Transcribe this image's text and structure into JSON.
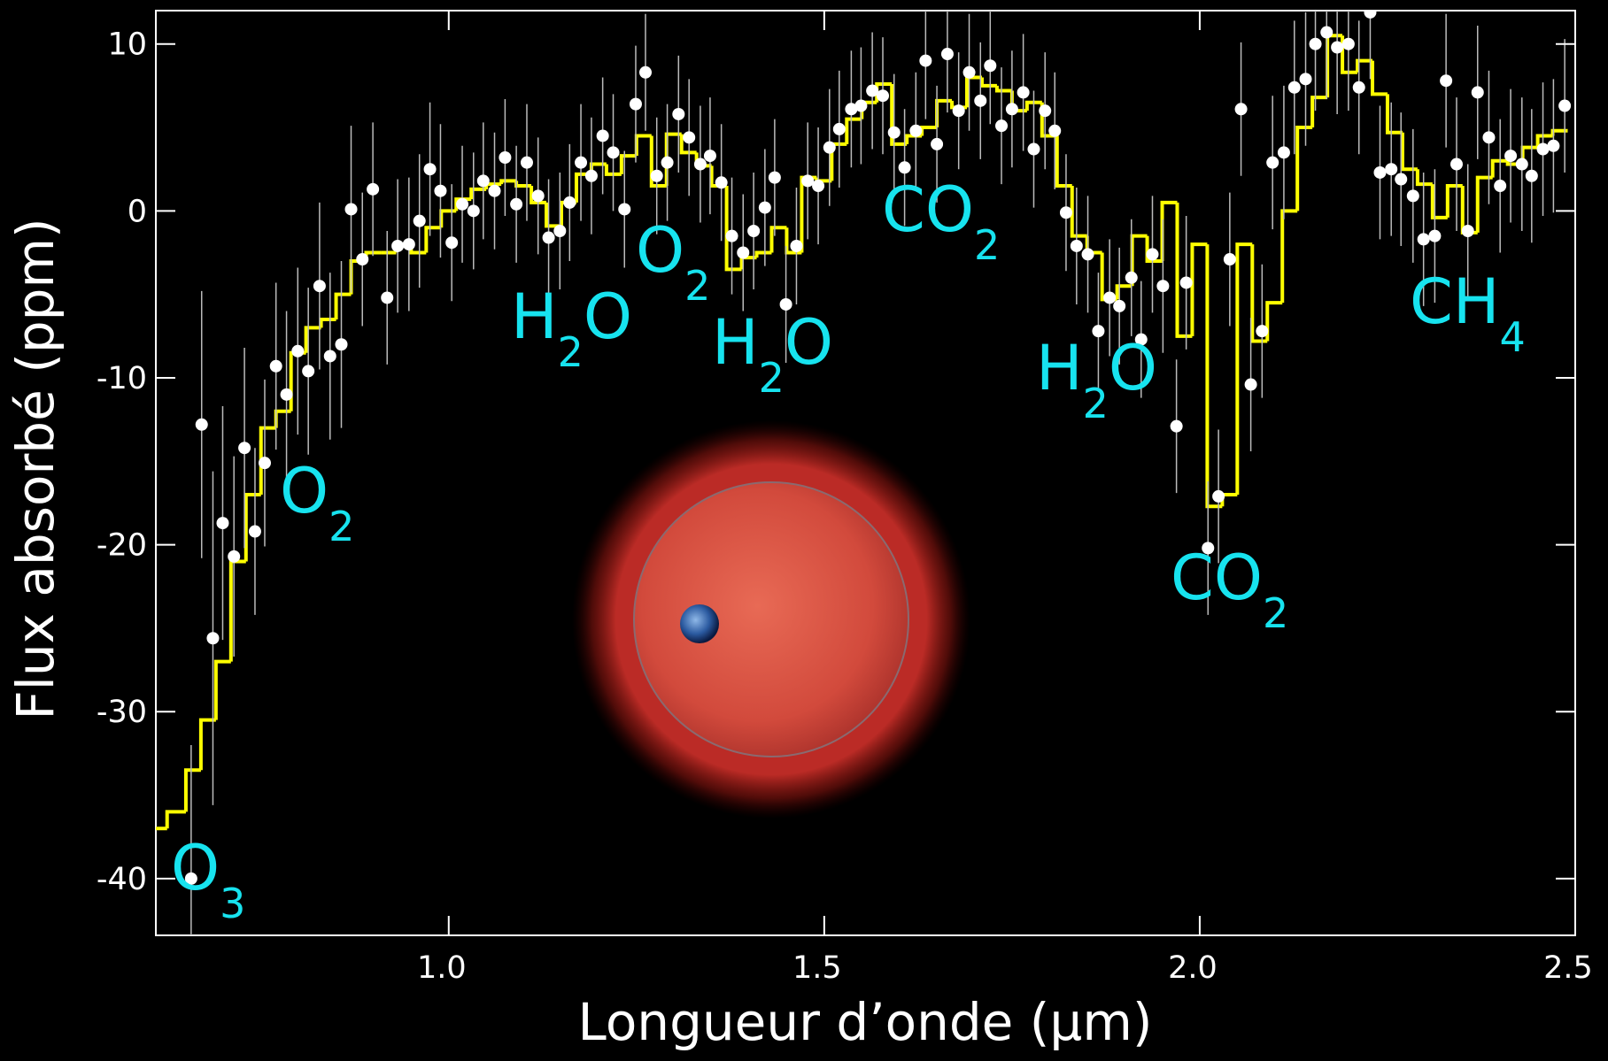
{
  "chart_data": {
    "type": "scatter",
    "x_label": "Longueur d’onde (μm)",
    "y_label": "Flux absorbé (ppm)",
    "xlim": [
      0.61,
      2.5
    ],
    "ylim": [
      -43.4,
      12
    ],
    "xticks": [
      {
        "value": 1.0,
        "label": "1.0"
      },
      {
        "value": 1.5,
        "label": "1.5"
      },
      {
        "value": 2.0,
        "label": "2.0"
      },
      {
        "value": 2.5,
        "label": "2.5"
      }
    ],
    "yticks": [
      10,
      0,
      -10,
      -20,
      -30,
      -40
    ],
    "series": [
      {
        "type": "step",
        "color": "#ffff00",
        "x": [
          0.61,
          0.64,
          0.66,
          0.68,
          0.7,
          0.72,
          0.74,
          0.76,
          0.78,
          0.8,
          0.82,
          0.84,
          0.86,
          0.88,
          0.9,
          0.92,
          0.94,
          0.96,
          0.98,
          1.0,
          1.02,
          1.04,
          1.06,
          1.08,
          1.1,
          1.12,
          1.14,
          1.16,
          1.18,
          1.2,
          1.22,
          1.24,
          1.26,
          1.28,
          1.3,
          1.32,
          1.34,
          1.36,
          1.38,
          1.4,
          1.42,
          1.44,
          1.46,
          1.48,
          1.5,
          1.52,
          1.54,
          1.56,
          1.58,
          1.6,
          1.62,
          1.64,
          1.66,
          1.68,
          1.7,
          1.72,
          1.74,
          1.76,
          1.78,
          1.8,
          1.82,
          1.84,
          1.86,
          1.88,
          1.9,
          1.92,
          1.94,
          1.96,
          1.98,
          2.0,
          2.02,
          2.04,
          2.06,
          2.08,
          2.1,
          2.12,
          2.14,
          2.16,
          2.18,
          2.2,
          2.22,
          2.24,
          2.26,
          2.28,
          2.3,
          2.32,
          2.34,
          2.36,
          2.38,
          2.4,
          2.42,
          2.44,
          2.46,
          2.48
        ],
        "values": [
          -37,
          -36,
          -33.5,
          -30.5,
          -27,
          -21,
          -17,
          -13,
          -12,
          -8.5,
          -7,
          -6.5,
          -5,
          -3,
          -2.5,
          -2.5,
          -2,
          -2.5,
          -1,
          0,
          0.7,
          1.3,
          1.6,
          1.8,
          1.5,
          0.5,
          -0.9,
          0.5,
          2.2,
          2.8,
          2.2,
          3.3,
          4.5,
          1.5,
          4.6,
          3.5,
          2.7,
          1.5,
          -3.5,
          -2.8,
          -2.5,
          -1,
          -2.5,
          2,
          1.8,
          4,
          5.5,
          6.5,
          7.6,
          4,
          4.5,
          5,
          6.6,
          6.2,
          8,
          7.5,
          7.2,
          6,
          6.5,
          4.5,
          1.5,
          -1.5,
          -2.5,
          -5.3,
          -4.5,
          -1.5,
          -3,
          0.5,
          -7.5,
          -2,
          -17.7,
          -17,
          -2,
          -7.8,
          -5.5,
          0,
          5,
          6.8,
          10.5,
          8.3,
          9,
          7,
          4.7,
          2.5,
          1.6,
          -0.4,
          1.5,
          -1.3,
          2,
          3,
          2.8,
          3.8,
          4.5,
          4.8
        ]
      },
      {
        "type": "scatter",
        "color": "#ffffff",
        "x": [
          0.657,
          0.671,
          0.686,
          0.699,
          0.714,
          0.728,
          0.742,
          0.755,
          0.77,
          0.784,
          0.799,
          0.813,
          0.828,
          0.842,
          0.857,
          0.87,
          0.885,
          0.899,
          0.918,
          0.932,
          0.947,
          0.961,
          0.975,
          0.989,
          1.004,
          1.018,
          1.033,
          1.046,
          1.061,
          1.075,
          1.09,
          1.104,
          1.119,
          1.133,
          1.148,
          1.161,
          1.176,
          1.19,
          1.205,
          1.219,
          1.234,
          1.249,
          1.262,
          1.277,
          1.291,
          1.306,
          1.32,
          1.335,
          1.348,
          1.363,
          1.377,
          1.392,
          1.406,
          1.421,
          1.434,
          1.449,
          1.463,
          1.478,
          1.492,
          1.507,
          1.52,
          1.536,
          1.549,
          1.564,
          1.578,
          1.593,
          1.607,
          1.622,
          1.635,
          1.65,
          1.664,
          1.679,
          1.693,
          1.708,
          1.721,
          1.736,
          1.75,
          1.765,
          1.779,
          1.794,
          1.807,
          1.822,
          1.836,
          1.851,
          1.865,
          1.88,
          1.893,
          1.909,
          1.922,
          1.937,
          1.951,
          1.969,
          1.982,
          2.011,
          2.025,
          2.04,
          2.055,
          2.068,
          2.083,
          2.097,
          2.112,
          2.126,
          2.141,
          2.154,
          2.169,
          2.183,
          2.198,
          2.212,
          2.227,
          2.24,
          2.255,
          2.268,
          2.284,
          2.298,
          2.313,
          2.328,
          2.342,
          2.357,
          2.37,
          2.385,
          2.4,
          2.414,
          2.429,
          2.442,
          2.457,
          2.471,
          2.486
        ],
        "values": [
          -40,
          -12.8,
          -25.6,
          -18.7,
          -20.7,
          -14.2,
          -19.2,
          -15.1,
          -9.3,
          -11.0,
          -8.4,
          -9.6,
          -4.5,
          -8.7,
          -8.0,
          0.1,
          -2.9,
          1.3,
          -5.2,
          -2.1,
          -2.0,
          -0.6,
          2.5,
          1.2,
          -1.9,
          0.4,
          0.0,
          1.8,
          1.2,
          3.2,
          0.4,
          2.9,
          0.9,
          -1.6,
          -1.2,
          0.5,
          2.9,
          2.1,
          4.5,
          3.5,
          0.1,
          6.4,
          8.3,
          2.1,
          2.9,
          5.8,
          4.4,
          2.8,
          3.3,
          1.7,
          -1.5,
          -2.5,
          -1.2,
          0.2,
          2.0,
          -5.6,
          -2.1,
          1.8,
          1.5,
          3.8,
          4.9,
          6.1,
          6.3,
          7.2,
          6.9,
          4.7,
          2.6,
          4.8,
          9.0,
          4.0,
          9.4,
          6.0,
          8.3,
          6.6,
          8.7,
          5.1,
          6.1,
          7.1,
          3.7,
          6.0,
          4.8,
          -0.1,
          -2.1,
          -2.6,
          -7.2,
          -5.2,
          -5.7,
          -4.0,
          -7.7,
          -2.6,
          -4.5,
          -12.9,
          -4.3,
          -20.2,
          -17.1,
          -2.9,
          6.1,
          -10.4,
          -7.2,
          2.9,
          3.5,
          7.4,
          7.9,
          10.0,
          10.7,
          9.8,
          10.0,
          7.4,
          11.9,
          2.3,
          2.5,
          1.9,
          0.9,
          -1.7,
          -1.5,
          7.8,
          2.8,
          -1.2,
          7.1,
          4.4,
          1.5,
          3.3,
          2.8,
          2.1,
          3.7,
          3.9,
          6.3
        ],
        "errors": [
          8,
          8,
          10,
          7,
          6,
          6,
          5,
          5,
          5,
          5,
          5,
          5,
          5,
          5,
          5,
          5,
          4,
          4,
          4,
          4,
          4,
          4,
          4,
          4,
          3.5,
          3.5,
          3.5,
          3.5,
          3.5,
          3.5,
          3.5,
          3.5,
          3.5,
          3.5,
          3.5,
          3.5,
          3.5,
          3.5,
          3.5,
          3.5,
          3.5,
          3.5,
          3.5,
          3.5,
          3.5,
          3.5,
          3.5,
          3.5,
          3.5,
          3.5,
          3.5,
          3.5,
          3.5,
          3.5,
          3.5,
          3.5,
          3.5,
          3.5,
          3.5,
          3.5,
          3.5,
          3.5,
          3.5,
          3.5,
          3.5,
          3.5,
          3.5,
          3.5,
          3.5,
          3.5,
          3.5,
          3.5,
          3.5,
          3.5,
          3.5,
          3.5,
          3.5,
          3.5,
          3.5,
          3.5,
          3.5,
          3.5,
          3.5,
          3.5,
          3.5,
          3.5,
          3.5,
          3.5,
          3.5,
          3.5,
          4,
          4,
          4,
          4,
          4,
          4,
          4,
          4,
          4,
          4,
          4,
          4,
          4,
          4,
          4,
          4,
          4,
          4,
          4,
          4,
          4,
          4,
          4,
          4,
          4,
          4,
          4,
          4,
          4,
          4,
          4,
          4,
          4,
          4,
          4,
          4,
          4
        ]
      }
    ],
    "annotations": [
      {
        "text": "O",
        "sub": "3"
      },
      {
        "text": "O",
        "sub": "2"
      },
      {
        "text": "H",
        "sub": "2",
        "after": "O"
      },
      {
        "text": "O",
        "sub": "2"
      },
      {
        "text": "H",
        "sub": "2",
        "after": "O"
      },
      {
        "text": "CO",
        "sub": "2"
      },
      {
        "text": "H",
        "sub": "2",
        "after": "O"
      },
      {
        "text": "CO",
        "sub": "2"
      },
      {
        "text": "CH",
        "sub": "4"
      }
    ]
  }
}
